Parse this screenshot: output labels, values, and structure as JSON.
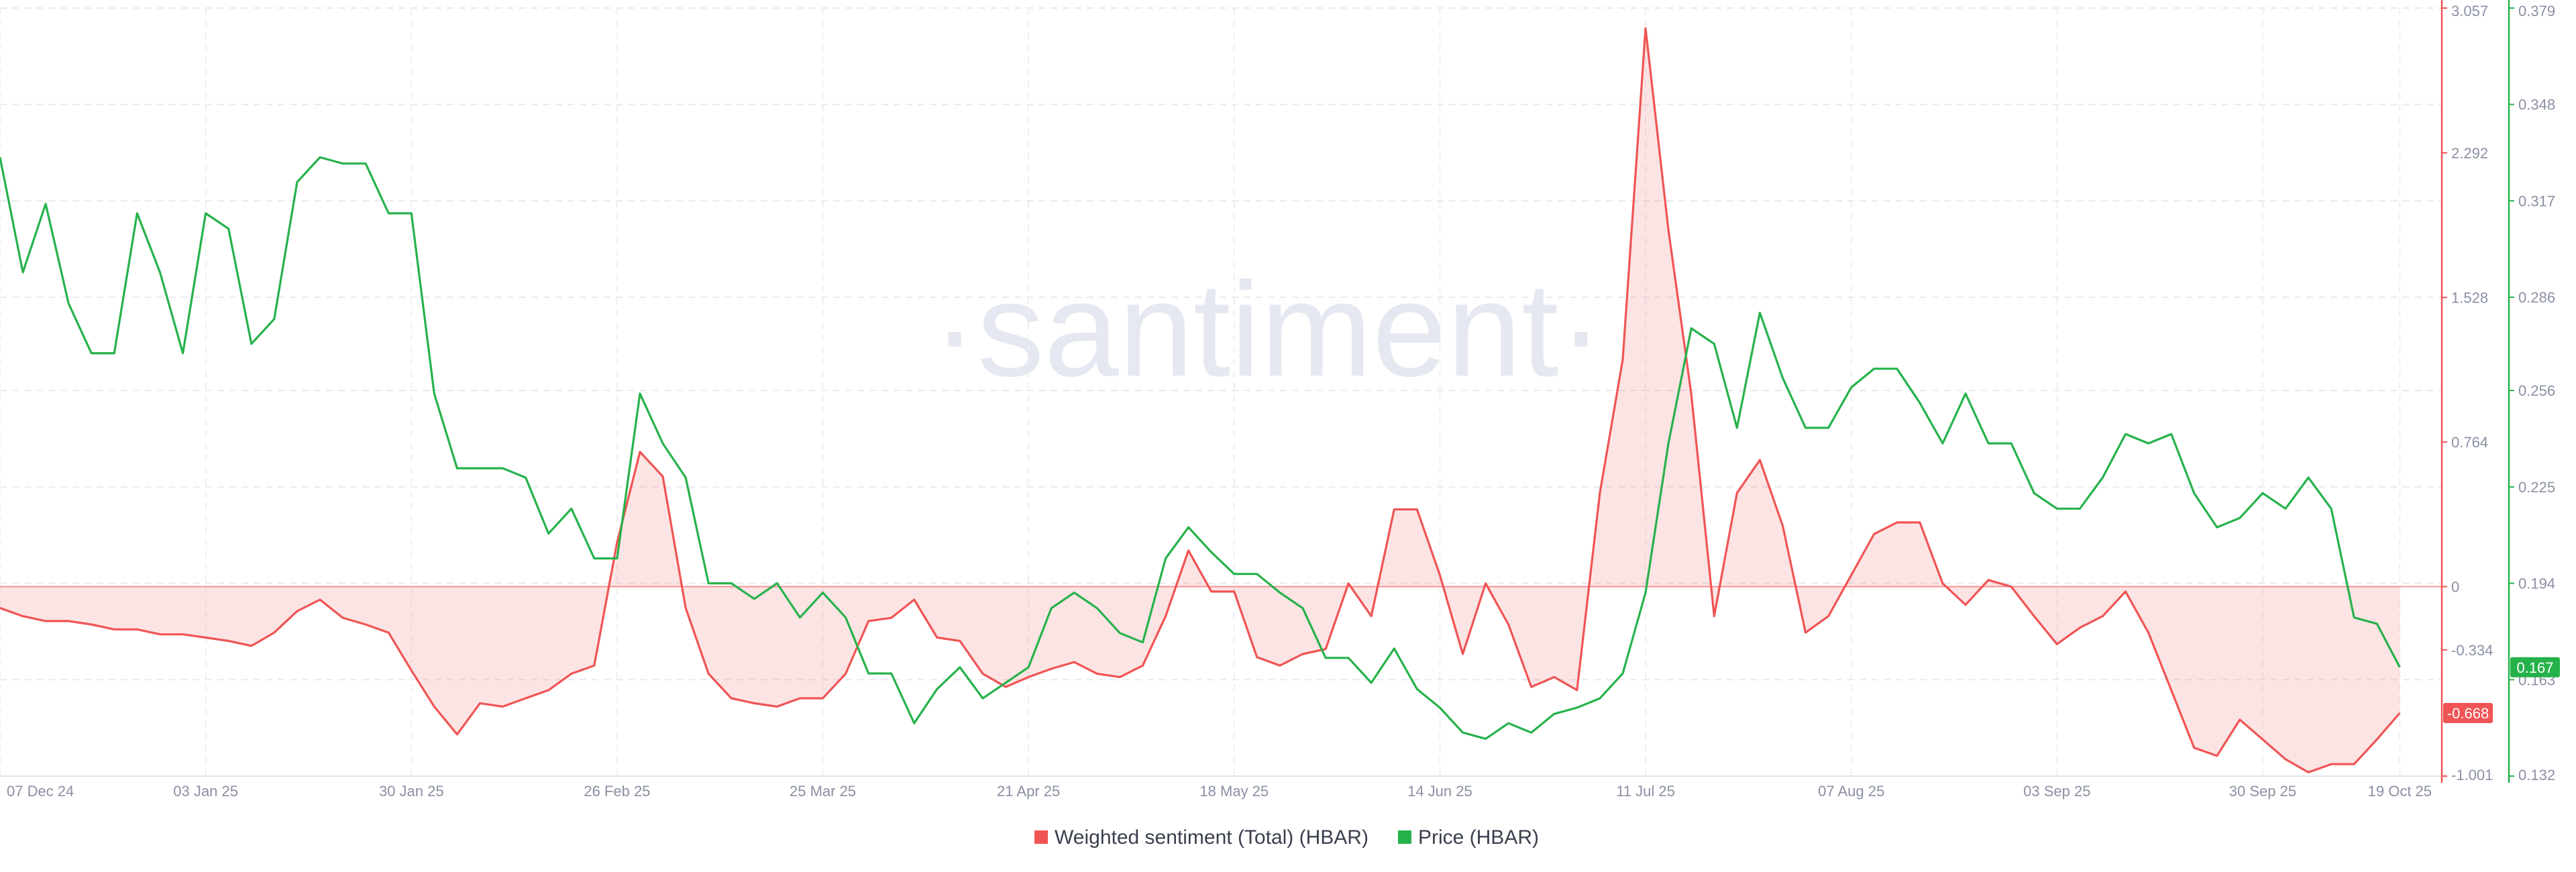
{
  "chart_data": {
    "type": "line",
    "watermark": "·santiment·",
    "categories": [
      "07 Dec 24",
      null,
      null,
      null,
      null,
      null,
      null,
      null,
      null,
      "03 Jan 25",
      null,
      null,
      null,
      null,
      null,
      null,
      null,
      null,
      "30 Jan 25",
      null,
      null,
      null,
      null,
      null,
      null,
      null,
      null,
      "26 Feb 25",
      null,
      null,
      null,
      null,
      null,
      null,
      null,
      null,
      "25 Mar 25",
      null,
      null,
      null,
      null,
      null,
      null,
      null,
      null,
      "21 Apr 25",
      null,
      null,
      null,
      null,
      null,
      null,
      null,
      null,
      "18 May 25",
      null,
      null,
      null,
      null,
      null,
      null,
      null,
      null,
      "14 Jun 25",
      null,
      null,
      null,
      null,
      null,
      null,
      null,
      null,
      "11 Jul 25",
      null,
      null,
      null,
      null,
      null,
      null,
      null,
      null,
      "07 Aug 25",
      null,
      null,
      null,
      null,
      null,
      null,
      null,
      null,
      "03 Sep 25",
      null,
      null,
      null,
      null,
      null,
      null,
      null,
      null,
      "30 Sep 25",
      null,
      null,
      null,
      null,
      null,
      "19 Oct 25"
    ],
    "series": [
      {
        "name": "Weighted sentiment (Total) (HBAR)",
        "color": "#f05454",
        "area": true,
        "values": [
          -0.113,
          -0.156,
          -0.182,
          -0.182,
          -0.2,
          -0.226,
          -0.226,
          -0.252,
          -0.252,
          -0.269,
          -0.287,
          -0.313,
          -0.243,
          -0.13,
          -0.069,
          -0.165,
          -0.2,
          -0.243,
          -0.443,
          -0.634,
          -0.781,
          -0.616,
          -0.634,
          -0.59,
          -0.547,
          -0.46,
          -0.417,
          0.234,
          0.712,
          0.582,
          -0.113,
          -0.46,
          -0.59,
          -0.616,
          -0.634,
          -0.59,
          -0.59,
          -0.46,
          -0.182,
          -0.165,
          -0.069,
          -0.269,
          -0.287,
          -0.46,
          -0.53,
          -0.478,
          -0.434,
          -0.399,
          -0.46,
          -0.478,
          -0.417,
          -0.156,
          0.191,
          -0.026,
          -0.026,
          -0.373,
          -0.417,
          -0.356,
          -0.33,
          0.017,
          -0.156,
          0.408,
          0.408,
          0.061,
          -0.356,
          0.017,
          -0.2,
          -0.53,
          -0.478,
          -0.547,
          0.495,
          1.2,
          2.95,
          1.884,
          1.016,
          -0.156,
          0.495,
          0.669,
          0.321,
          -0.243,
          -0.156,
          0.061,
          0.278,
          0.339,
          0.339,
          0.017,
          -0.096,
          0.035,
          0,
          -0.156,
          -0.304,
          -0.217,
          -0.156,
          -0.026,
          -0.243,
          -0.547,
          -0.851,
          -0.894,
          -0.703,
          -0.807,
          -0.912,
          -0.981,
          -0.938,
          -0.938,
          -0.807,
          -0.668
        ]
      },
      {
        "name": "Price (HBAR)",
        "color": "#26b24b",
        "axis": "y2",
        "values": [
          0.331,
          0.294,
          0.316,
          0.284,
          0.268,
          0.268,
          0.313,
          0.294,
          0.268,
          0.313,
          0.308,
          0.271,
          0.279,
          0.323,
          0.331,
          0.329,
          0.329,
          0.313,
          0.313,
          0.255,
          0.231,
          0.231,
          0.231,
          0.228,
          0.21,
          0.218,
          0.202,
          0.202,
          0.255,
          0.239,
          0.228,
          0.194,
          0.194,
          0.189,
          0.194,
          0.183,
          0.191,
          0.183,
          0.165,
          0.165,
          0.149,
          0.16,
          0.167,
          0.157,
          0.162,
          0.167,
          0.186,
          0.191,
          0.186,
          0.178,
          0.175,
          0.202,
          0.212,
          0.204,
          0.197,
          0.197,
          0.191,
          0.186,
          0.17,
          0.17,
          0.162,
          0.173,
          0.16,
          0.154,
          0.146,
          0.144,
          0.149,
          0.146,
          0.152,
          0.154,
          0.157,
          0.165,
          0.191,
          0.239,
          0.276,
          0.271,
          0.244,
          0.281,
          0.26,
          0.244,
          0.244,
          0.257,
          0.263,
          0.263,
          0.252,
          0.239,
          0.255,
          0.239,
          0.239,
          0.223,
          0.218,
          0.218,
          0.228,
          0.242,
          0.239,
          0.242,
          0.223,
          0.212,
          0.215,
          0.223,
          0.218,
          0.228,
          0.218,
          0.183,
          0.181,
          0.167
        ]
      }
    ],
    "ylim": [
      -1.001,
      3.057
    ],
    "yticks": [
      -1.001,
      -0.334,
      0,
      0.764,
      1.528,
      2.292,
      3.057
    ],
    "y2lim": [
      0.132,
      0.379
    ],
    "y2ticks": [
      0.132,
      0.163,
      0.194,
      0.225,
      0.256,
      0.286,
      0.317,
      0.348,
      0.379
    ],
    "grid": true,
    "legend": "bottom"
  }
}
